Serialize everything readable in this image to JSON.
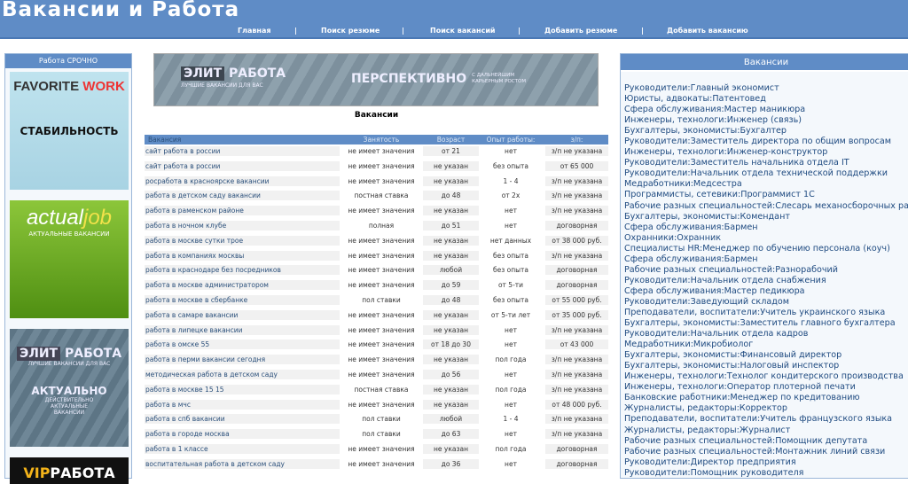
{
  "site_title": "Вакансии и Работа",
  "nav": [
    "Главная",
    "|",
    "Поиск резюме",
    "|",
    "Поиск вакансий",
    "|",
    "Добавить резюме",
    "|",
    "Добавить вакансию"
  ],
  "left_panel": {
    "title": "Работа СРОЧНО",
    "banners": [
      {
        "logo1": "FAVORITE",
        "logo2": "WORK",
        "text": "СТАБИЛЬНОСТЬ"
      },
      {
        "logo1": "actual",
        "logo2": "job",
        "text": "АКТУАЛЬНЫЕ ВАКАНСИИ"
      },
      {
        "logo1": "ЭЛИТ",
        "logo2": "РАБОТА",
        "sub": "ЛУЧШИЕ ВАКАНСИИ ДЛЯ ВАС",
        "text": "АКТУАЛЬНО",
        "text2": "ДЕЙСТВИТЕЛЬНО АКТУАЛЬНЫЕ ВАКАНСИИ"
      },
      {
        "logo1": "VIP",
        "logo2": "РАБОТА"
      }
    ]
  },
  "center_banner": {
    "logo1": "ЭЛИТ",
    "logo2": "РАБОТА",
    "sub": "ЛУЧШИЕ ВАКАНСИИ ДЛЯ ВАС",
    "headline": "ПЕРСПЕКТИВНО",
    "headline_sub": "С ДАЛЬНЕЙШИМ КАРЬЕРНЫМ РОСТОМ"
  },
  "vacancies_title": "Вакансии",
  "table": {
    "headers": [
      "Вакансия",
      "Занятость",
      "Возраст",
      "Опыт работы:",
      "з/п:"
    ],
    "rows": [
      [
        "сайт работа в россии",
        "не имеет значения",
        "от 21",
        "нет",
        "з/п не указана"
      ],
      [
        "сайт работа в россии",
        "не имеет значения",
        "не указан",
        "без опыта",
        "от 65 000"
      ],
      [
        "росработа в красноярске вакансии",
        "не имеет значения",
        "не указан",
        "1 - 4",
        "з/п не указана"
      ],
      [
        "работа в детском саду вакансии",
        "постная ставка",
        "до 48",
        "от 2х",
        "з/п не указана"
      ],
      [
        "работа в раменском районе",
        "не имеет значения",
        "не указан",
        "нет",
        "з/п не указана"
      ],
      [
        "работа в ночном клубе",
        "полная",
        "до 51",
        "нет",
        "договорная"
      ],
      [
        "работа в москве сутки трое",
        "не имеет значения",
        "не указан",
        "нет данных",
        "от 38 000 руб."
      ],
      [
        "работа в компаниях москвы",
        "не имеет значения",
        "не указан",
        "без опыта",
        "з/п не указана"
      ],
      [
        "работа в краснодаре без посредников",
        "не имеет значения",
        "любой",
        "без опыта",
        "договорная"
      ],
      [
        "работа в москве администратором",
        "не имеет значения",
        "до 59",
        "от 5-ти",
        "договорная"
      ],
      [
        "работа в москве в сбербанке",
        "пол ставки",
        "до 48",
        "без опыта",
        "от 55 000 руб."
      ],
      [
        "работа в самаре вакансии",
        "не имеет значения",
        "не указан",
        "от 5-ти лет",
        "от 35 000 руб."
      ],
      [
        "работа в липецке вакансии",
        "не имеет значения",
        "не указан",
        "нет",
        "з/п не указана"
      ],
      [
        "работа в омске 55",
        "не имеет значения",
        "от 18 до 30",
        "нет",
        "от 43 000"
      ],
      [
        "работа в перми вакансии сегодня",
        "не имеет значения",
        "не указан",
        "пол года",
        "з/п не указана"
      ],
      [
        "методическая работа в детском саду",
        "не имеет значения",
        "до 56",
        "нет",
        "з/п не указана"
      ],
      [
        "работа в москве 15 15",
        "постная ставка",
        "не указан",
        "пол года",
        "з/п не указана"
      ],
      [
        "работа в мчс",
        "не имеет значения",
        "не указан",
        "нет",
        "от 48 000 руб."
      ],
      [
        "работа в спб вакансии",
        "пол ставки",
        "любой",
        "1 - 4",
        "з/п не указана"
      ],
      [
        "работа в городе москва",
        "пол ставки",
        "до 63",
        "нет",
        "з/п не указана"
      ],
      [
        "работа в 1 классе",
        "не имеет значения",
        "не указан",
        "пол года",
        "договорная"
      ],
      [
        "воспитательная работа в детском саду",
        "не имеет значения",
        "до 36",
        "нет",
        "договорная"
      ]
    ]
  },
  "right_panel": {
    "title": "Вакансии",
    "items": [
      "Руководители:Главный экономист",
      "Юристы, адвокаты:Патентовед",
      "Сфера обслуживания:Мастер маникюра",
      "Инженеры, технологи:Инженер (связь)",
      "Бухгалтеры, экономисты:Бухгалтер",
      "Руководители:Заместитель директора по общим вопросам",
      "Инженеры, технологи:Инженер-конструктор",
      "Руководители:Заместитель начальника отдела IT",
      "Руководители:Начальник отдела технической поддержки",
      "Медработники:Медсестра",
      "Программисты, сетевики:Программист 1С",
      "Рабочие разных специальностей:Слесарь механосборочных работ",
      "Бухгалтеры, экономисты:Комендант",
      "Сфера обслуживания:Бармен",
      "Охранники:Охранник",
      "Специалисты HR:Менеджер по обучению персонала (коуч)",
      "Сфера обслуживания:Бармен",
      "Рабочие разных специальностей:Разнорабочий",
      "Руководители:Начальник отдела снабжения",
      "Сфера обслуживания:Мастер педикюра",
      "Руководители:Заведующий складом",
      "Преподаватели, воспитатели:Учитель украинского языка",
      "Бухгалтеры, экономисты:Заместитель главного бухгалтера",
      "Руководители:Начальник отдела кадров",
      "Медработники:Микробиолог",
      "Бухгалтеры, экономисты:Финансовый директор",
      "Бухгалтеры, экономисты:Налоговый инспектор",
      "Инженеры, технологи:Технолог кондитерского производства",
      "Инженеры, технологи:Оператор плотерной печати",
      "Банковские работники:Менеджер по кредитованию",
      "Журналисты, редакторы:Корректор",
      "Преподаватели, воспитатели:Учитель французского языка",
      "Журналисты, редакторы:Журналист",
      "Рабочие разных специальностей:Помощник депутата",
      "Рабочие разных специальностей:Монтажник линий связи",
      "Руководители:Директор предприятия",
      "Руководители:Помощник руководителя"
    ]
  },
  "colors": {
    "brand": "#5f8cc6"
  }
}
